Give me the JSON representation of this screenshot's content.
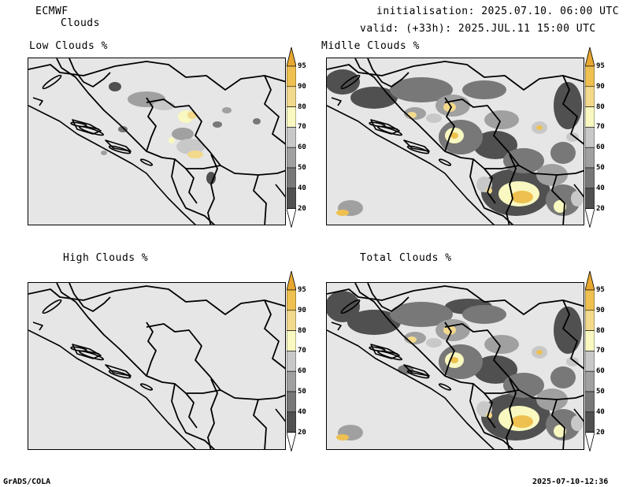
{
  "header": {
    "model": "ECMWF",
    "product": "Clouds",
    "init": "initialisation: 2025.07.10. 06:00 UTC",
    "valid": "valid: (+33h): 2025.JUL.11 15:00 UTC"
  },
  "panels": [
    {
      "id": "low",
      "title": "Low Clouds %"
    },
    {
      "id": "middle",
      "title": "Midlle Clouds %"
    },
    {
      "id": "high",
      "title": "High Clouds %"
    },
    {
      "id": "total",
      "title": "Total Clouds %"
    }
  ],
  "legend": {
    "levels": [
      "20",
      "40",
      "50",
      "60",
      "70",
      "80",
      "90",
      "95"
    ],
    "colors": [
      "#ffffff",
      "#505050",
      "#787878",
      "#a0a0a0",
      "#c8c8c8",
      "#f8f8c0",
      "#f2d98c",
      "#eec050",
      "#e8a830"
    ]
  },
  "footer": {
    "left": "GrADS/COLA",
    "right": "2025-07-10-12:36"
  }
}
